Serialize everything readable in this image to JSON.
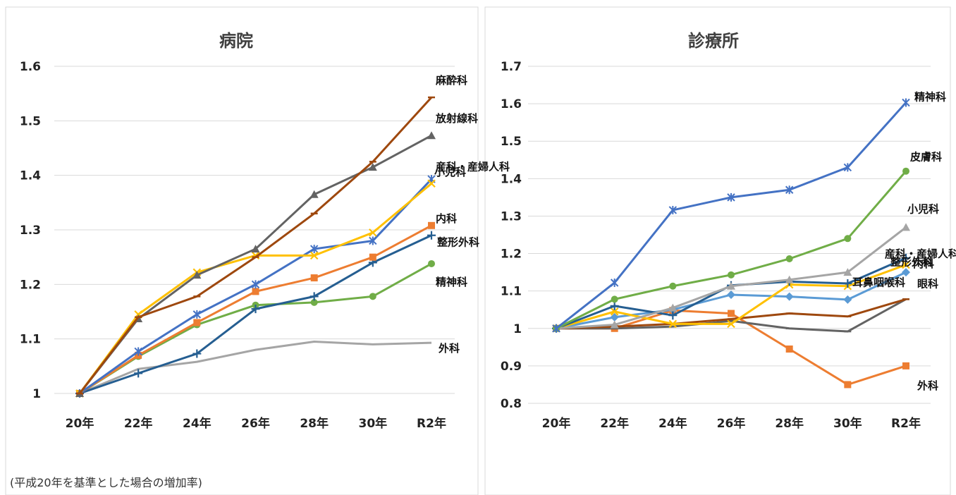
{
  "note": "(平成20年を基準とした場合の増加率)",
  "chart_data": [
    {
      "type": "line",
      "title": "病院",
      "categories": [
        "20年",
        "22年",
        "24年",
        "26年",
        "28年",
        "30年",
        "R2年"
      ],
      "ylim": [
        1,
        1.6
      ],
      "yticks": [
        "1",
        "1.1",
        "1.2",
        "1.3",
        "1.4",
        "1.5",
        "1.6"
      ],
      "grid": true,
      "legend": "inline labels at right end",
      "series": [
        {
          "name": "麻酔科",
          "color": "#9e480e",
          "marker": "dash",
          "values": [
            1.0,
            1.14,
            1.178,
            1.25,
            1.33,
            1.425,
            1.543
          ]
        },
        {
          "name": "放射線科",
          "color": "#636363",
          "marker": "triangle",
          "values": [
            1.0,
            1.137,
            1.217,
            1.265,
            1.365,
            1.415,
            1.473
          ]
        },
        {
          "name": "産科・産婦人科",
          "color": "#ffc000",
          "marker": "x",
          "values": [
            1.0,
            1.145,
            1.222,
            1.253,
            1.253,
            1.295,
            1.385
          ]
        },
        {
          "name": "小児科",
          "color": "#4472c4",
          "marker": "star",
          "values": [
            1.0,
            1.077,
            1.145,
            1.2,
            1.265,
            1.28,
            1.393
          ]
        },
        {
          "name": "内科",
          "color": "#ed7d31",
          "marker": "square",
          "values": [
            1.0,
            1.07,
            1.13,
            1.187,
            1.212,
            1.25,
            1.308
          ]
        },
        {
          "name": "整形外科",
          "color": "#255e91",
          "marker": "plus",
          "values": [
            1.0,
            1.037,
            1.073,
            1.155,
            1.178,
            1.24,
            1.29
          ]
        },
        {
          "name": "精神科",
          "color": "#70ad47",
          "marker": "circle",
          "values": [
            1.0,
            1.068,
            1.126,
            1.162,
            1.167,
            1.178,
            1.238
          ]
        },
        {
          "name": "外科",
          "color": "#a5a5a5",
          "marker": "none",
          "values": [
            1.0,
            1.045,
            1.058,
            1.08,
            1.095,
            1.09,
            1.093
          ]
        }
      ]
    },
    {
      "type": "line",
      "title": "診療所",
      "categories": [
        "20年",
        "22年",
        "24年",
        "26年",
        "28年",
        "30年",
        "R2年"
      ],
      "ylim": [
        0.8,
        1.7
      ],
      "yticks": [
        "0.8",
        "0.9",
        "1",
        "1.1",
        "1.2",
        "1.3",
        "1.4",
        "1.5",
        "1.6",
        "1.7"
      ],
      "grid": true,
      "legend": "inline labels at right end",
      "series": [
        {
          "name": "精神科",
          "color": "#4472c4",
          "marker": "star",
          "values": [
            1.0,
            1.122,
            1.316,
            1.35,
            1.37,
            1.43,
            1.603
          ]
        },
        {
          "name": "皮膚科",
          "color": "#70ad47",
          "marker": "circle",
          "values": [
            1.0,
            1.078,
            1.113,
            1.143,
            1.186,
            1.24,
            1.42
          ]
        },
        {
          "name": "小児科",
          "color": "#a5a5a5",
          "marker": "triangle",
          "values": [
            1.0,
            1.01,
            1.055,
            1.113,
            1.13,
            1.15,
            1.27
          ]
        },
        {
          "name": "産科・産婦人科",
          "color": "#255e91",
          "marker": "plus",
          "values": [
            1.0,
            1.06,
            1.035,
            1.115,
            1.125,
            1.12,
            1.188
          ]
        },
        {
          "name": "整形外科",
          "color": "#ffc000",
          "marker": "x",
          "values": [
            1.0,
            1.045,
            1.012,
            1.012,
            1.117,
            1.113,
            1.17
          ]
        },
        {
          "name": "内科",
          "color": "#5b9bd5",
          "marker": "diamond",
          "values": [
            1.0,
            1.03,
            1.05,
            1.09,
            1.085,
            1.077,
            1.15
          ]
        },
        {
          "name": "眼科",
          "color": "#9e480e",
          "marker": "dash",
          "values": [
            1.0,
            1.005,
            1.012,
            1.025,
            1.04,
            1.032,
            1.078
          ]
        },
        {
          "name": "耳鼻咽喉科",
          "color": "#636363",
          "marker": "dash",
          "values": [
            1.0,
            1.0,
            1.005,
            1.02,
            1.0,
            0.992,
            1.078
          ]
        },
        {
          "name": "外科",
          "color": "#ed7d31",
          "marker": "square",
          "values": [
            1.0,
            1.0,
            1.048,
            1.04,
            0.945,
            0.85,
            0.9
          ]
        }
      ]
    }
  ]
}
